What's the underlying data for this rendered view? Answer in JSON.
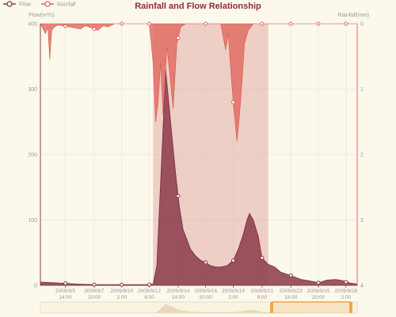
{
  "chart_data": {
    "type": "area",
    "title": "Rainfall and Flow Relationship",
    "legend": {
      "position": "top-left",
      "items": [
        {
          "name": "Flow",
          "color": "#8b3a4a"
        },
        {
          "name": "Rainfall",
          "color": "#e0675c"
        }
      ]
    },
    "y_left": {
      "label": "Flow(m³/s)",
      "min": 0,
      "max": 400,
      "ticks": [
        0,
        100,
        200,
        300,
        400
      ]
    },
    "y_right": {
      "label": "Rainfall(mm)",
      "min": 0,
      "max": 4,
      "inverse": true,
      "ticks": [
        "0",
        "1",
        "2",
        "3",
        "4"
      ]
    },
    "x_ticks": [
      {
        "day": 2.6,
        "l1": "2009/9/5",
        "l2": "14:00"
      },
      {
        "day": 4.9,
        "l1": "2009/9/7",
        "l2": "20:00"
      },
      {
        "day": 7.1,
        "l1": "2009/9/10",
        "l2": "2:00"
      },
      {
        "day": 9.3,
        "l1": "2009/9/12",
        "l2": "8:00"
      },
      {
        "day": 11.6,
        "l1": "2009/9/14",
        "l2": "14:00"
      },
      {
        "day": 13.8,
        "l1": "2009/9/16",
        "l2": "20:00"
      },
      {
        "day": 16.0,
        "l1": "2009/9/19",
        "l2": "2:00"
      },
      {
        "day": 18.3,
        "l1": "2009/9/21",
        "l2": "8:00"
      },
      {
        "day": 20.6,
        "l1": "2009/9/23",
        "l2": "14:00"
      },
      {
        "day": 22.8,
        "l1": "2009/9/25",
        "l2": "20:00"
      },
      {
        "day": 25.0,
        "l1": "2009/9/28",
        "l2": "2:00"
      }
    ],
    "x_range": [
      0.6,
      25.9
    ],
    "highlight_range": [
      9.6,
      18.8
    ],
    "grid": true,
    "flow": [
      [
        0.6,
        5
      ],
      [
        1.5,
        4
      ],
      [
        2.6,
        3
      ],
      [
        3.5,
        2
      ],
      [
        4.9,
        1
      ],
      [
        6,
        1
      ],
      [
        7.1,
        1
      ],
      [
        8.5,
        1
      ],
      [
        9.3,
        1
      ],
      [
        9.6,
        2
      ],
      [
        9.9,
        30
      ],
      [
        10.3,
        200
      ],
      [
        10.6,
        330
      ],
      [
        10.8,
        290
      ],
      [
        11.1,
        230
      ],
      [
        11.4,
        170
      ],
      [
        11.7,
        120
      ],
      [
        12.0,
        85
      ],
      [
        12.3,
        70
      ],
      [
        12.6,
        55
      ],
      [
        13.0,
        45
      ],
      [
        13.4,
        38
      ],
      [
        13.8,
        35
      ],
      [
        14.2,
        30
      ],
      [
        14.6,
        28
      ],
      [
        15.0,
        28
      ],
      [
        15.5,
        30
      ],
      [
        16.0,
        38
      ],
      [
        16.4,
        55
      ],
      [
        16.8,
        78
      ],
      [
        17.1,
        100
      ],
      [
        17.3,
        110
      ],
      [
        17.6,
        100
      ],
      [
        18.0,
        75
      ],
      [
        18.3,
        42
      ],
      [
        18.8,
        32
      ],
      [
        19.3,
        28
      ],
      [
        19.8,
        20
      ],
      [
        20.6,
        15
      ],
      [
        21.4,
        9
      ],
      [
        22.0,
        7
      ],
      [
        22.8,
        4
      ],
      [
        23.5,
        8
      ],
      [
        24.2,
        9
      ],
      [
        24.8,
        7
      ],
      [
        25.0,
        5
      ],
      [
        25.5,
        3
      ],
      [
        25.9,
        2
      ]
    ],
    "rainfall": [
      [
        0.6,
        0
      ],
      [
        1.0,
        0.15
      ],
      [
        1.2,
        0.05
      ],
      [
        1.35,
        0.55
      ],
      [
        1.5,
        0.1
      ],
      [
        1.7,
        0.05
      ],
      [
        2.0,
        0.02
      ],
      [
        3.0,
        0.05
      ],
      [
        3.8,
        0.08
      ],
      [
        4.2,
        0.03
      ],
      [
        5.2,
        0.1
      ],
      [
        5.6,
        0.03
      ],
      [
        6.0,
        0.05
      ],
      [
        6.5,
        0
      ],
      [
        7.5,
        0
      ],
      [
        8.5,
        0
      ],
      [
        9.3,
        0
      ],
      [
        9.4,
        0.2
      ],
      [
        9.6,
        0.6
      ],
      [
        9.8,
        1.5
      ],
      [
        10.0,
        1.2
      ],
      [
        10.2,
        0.6
      ],
      [
        10.4,
        1.4
      ],
      [
        10.7,
        0.35
      ],
      [
        10.9,
        0.7
      ],
      [
        11.2,
        1.3
      ],
      [
        11.5,
        0.3
      ],
      [
        11.8,
        0.05
      ],
      [
        12.2,
        0
      ],
      [
        13.5,
        0
      ],
      [
        15.0,
        0
      ],
      [
        15.2,
        0.2
      ],
      [
        15.4,
        0.4
      ],
      [
        15.6,
        0.15
      ],
      [
        15.8,
        0.7
      ],
      [
        16.0,
        1.2
      ],
      [
        16.3,
        1.8
      ],
      [
        16.5,
        1.4
      ],
      [
        16.7,
        0.9
      ],
      [
        16.9,
        0.3
      ],
      [
        17.2,
        0.1
      ],
      [
        17.6,
        0
      ],
      [
        26,
        0
      ]
    ],
    "flow_markers": [
      2.6,
      4.9,
      7.1,
      9.3,
      11.6,
      13.8,
      16.0,
      18.3,
      20.6,
      22.8,
      25.0
    ],
    "rain_markers": [
      2.6,
      4.9,
      7.1,
      9.3,
      11.6,
      13.8,
      16.0,
      18.3,
      20.6,
      22.8,
      25.0
    ]
  },
  "datazoom": {
    "start": 0.73,
    "end": 0.98
  }
}
